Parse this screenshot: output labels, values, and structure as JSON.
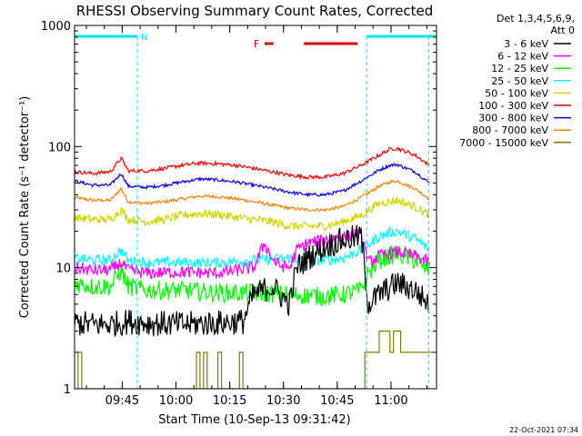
{
  "chart_data": {
    "type": "line",
    "title": "RHESSI Observing Summary Count Rates, Corrected",
    "xlabel": "Start Time (10-Sep-13 09:31:42)",
    "ylabel": "Corrected Count Rate (s⁻¹ detector⁻¹)",
    "yscale": "log",
    "ylim": [
      1,
      1000
    ],
    "xlim_minutes": [
      0,
      101
    ],
    "grid": false,
    "legend_position": "right",
    "x_tick_labels": [
      {
        "label": "09:45",
        "minute": 13.3
      },
      {
        "label": "10:00",
        "minute": 28.3
      },
      {
        "label": "10:15",
        "minute": 43.3
      },
      {
        "label": "10:30",
        "minute": 58.3
      },
      {
        "label": "10:45",
        "minute": 73.3
      },
      {
        "label": "11:00",
        "minute": 88.3
      }
    ],
    "y_tick_labels": [
      {
        "label": "1",
        "value": 1
      },
      {
        "label": "10",
        "value": 10
      },
      {
        "label": "100",
        "value": 100
      },
      {
        "label": "1000",
        "value": 1000
      }
    ],
    "legend_header": [
      "Det 1,3,4,5,6,9,",
      "Att 0"
    ],
    "night_marker_label": "N",
    "flare_marker_label": "F",
    "timestamp": "22-Oct-2021 07:34",
    "colors": {
      "night": "#00e5ee",
      "flare": "#e00000"
    },
    "night_bars": [
      {
        "start": 0,
        "end": 17.5
      },
      {
        "start": 81.5,
        "end": 101
      }
    ],
    "flare_bars": [
      {
        "start": 53,
        "end": 55.5
      },
      {
        "start": 64,
        "end": 79
      }
    ],
    "dashed_lines": [
      17.5,
      81.5,
      98.8
    ],
    "series": [
      {
        "name": "3 - 6 keV",
        "color": "#000000",
        "noise": 0.25,
        "x": [
          0,
          5,
          10,
          15,
          20,
          30,
          40,
          47,
          50,
          55,
          60,
          62,
          65,
          70,
          75,
          80,
          82,
          85,
          90,
          95,
          99
        ],
        "y": [
          3.5,
          3.4,
          3.4,
          3.6,
          3.5,
          3.4,
          3.5,
          3.6,
          6.0,
          7.0,
          5.0,
          10.0,
          12.0,
          15.0,
          17.0,
          18.0,
          5.0,
          6.0,
          7.5,
          6.5,
          5.0
        ]
      },
      {
        "name": "6 - 12 keV",
        "color": "#ff00ff",
        "noise": 0.12,
        "x": [
          0,
          5,
          10,
          13,
          15,
          20,
          30,
          40,
          50,
          53,
          55,
          57,
          60,
          62,
          65,
          70,
          75,
          80,
          82,
          85,
          90,
          95,
          99
        ],
        "y": [
          10.0,
          9.5,
          9.5,
          11.0,
          9.5,
          9.0,
          9.2,
          9.0,
          10.0,
          16.0,
          12.0,
          10.5,
          10.0,
          14.0,
          16.0,
          17.0,
          18.0,
          19.0,
          11.0,
          12.5,
          13.5,
          12.5,
          11.0
        ]
      },
      {
        "name": "12 - 25 keV",
        "color": "#00ff00",
        "noise": 0.18,
        "x": [
          0,
          5,
          10,
          13,
          15,
          20,
          30,
          40,
          50,
          60,
          70,
          75,
          80,
          82,
          85,
          88,
          90,
          95,
          99
        ],
        "y": [
          7.5,
          7.0,
          7.0,
          9.5,
          7.0,
          6.5,
          6.5,
          6.2,
          6.2,
          6.0,
          5.8,
          6.0,
          6.5,
          9.0,
          11.5,
          12.5,
          13.0,
          11.5,
          9.5
        ]
      },
      {
        "name": "25 - 50 keV",
        "color": "#00ffff",
        "noise": 0.1,
        "x": [
          0,
          5,
          10,
          13,
          15,
          20,
          30,
          40,
          50,
          60,
          65,
          70,
          75,
          80,
          82,
          85,
          88,
          90,
          95,
          99
        ],
        "y": [
          12.0,
          11.5,
          11.5,
          14.0,
          11.5,
          11.0,
          11.0,
          11.0,
          11.5,
          12.0,
          11.5,
          11.5,
          12.0,
          14.0,
          15.5,
          18.0,
          19.5,
          20.0,
          17.5,
          14.0
        ]
      },
      {
        "name": "50 - 100 keV",
        "color": "#d4d400",
        "noise": 0.08,
        "x": [
          0,
          5,
          10,
          13,
          15,
          20,
          25,
          30,
          35,
          40,
          45,
          50,
          55,
          60,
          65,
          70,
          75,
          80,
          85,
          90,
          95,
          99
        ],
        "y": [
          26.0,
          25.0,
          25.0,
          30.0,
          25.0,
          24.0,
          25.0,
          27.0,
          28.0,
          27.5,
          26.0,
          25.0,
          24.0,
          22.0,
          22.0,
          22.0,
          24.0,
          27.0,
          34.0,
          36.0,
          32.0,
          27.0
        ]
      },
      {
        "name": "100 - 300 keV",
        "color": "#ff0000",
        "noise": 0.035,
        "x": [
          0,
          5,
          10,
          13,
          15,
          20,
          25,
          30,
          35,
          40,
          45,
          50,
          55,
          60,
          65,
          70,
          75,
          80,
          85,
          88,
          90,
          95,
          99
        ],
        "y": [
          62.0,
          60.0,
          62.0,
          80.0,
          63.0,
          63.0,
          66.0,
          70.0,
          73.0,
          72.0,
          70.0,
          66.0,
          62.0,
          58.0,
          56.0,
          56.0,
          60.0,
          70.0,
          85.0,
          95.0,
          97.0,
          85.0,
          70.0
        ]
      },
      {
        "name": "300 - 800 keV",
        "color": "#0000ff",
        "noise": 0.03,
        "x": [
          0,
          5,
          10,
          13,
          15,
          20,
          25,
          30,
          35,
          40,
          45,
          50,
          55,
          60,
          65,
          70,
          75,
          80,
          85,
          88,
          90,
          95,
          99
        ],
        "y": [
          52.0,
          48.0,
          48.0,
          60.0,
          47.0,
          46.0,
          48.0,
          51.0,
          54.0,
          53.0,
          51.0,
          48.0,
          45.0,
          42.0,
          40.0,
          40.0,
          43.0,
          52.0,
          64.0,
          70.0,
          71.0,
          62.0,
          50.0
        ]
      },
      {
        "name": "800 - 7000 keV",
        "color": "#ff8000",
        "noise": 0.03,
        "x": [
          0,
          5,
          10,
          13,
          15,
          20,
          25,
          30,
          35,
          40,
          45,
          50,
          55,
          60,
          65,
          70,
          75,
          80,
          85,
          88,
          90,
          95,
          99
        ],
        "y": [
          38.0,
          36.0,
          36.0,
          45.0,
          35.0,
          34.0,
          35.0,
          37.0,
          39.0,
          38.5,
          37.0,
          35.0,
          33.0,
          31.0,
          30.0,
          30.0,
          32.0,
          38.0,
          47.0,
          51.0,
          52.0,
          45.0,
          37.0
        ]
      },
      {
        "name": "7000 - 15000 keV",
        "color": "#808000",
        "noise": 0,
        "x": [
          0,
          1,
          2,
          3,
          4,
          5,
          6,
          7,
          8,
          9,
          10,
          11,
          12,
          13,
          14,
          15,
          16,
          17,
          18,
          19,
          20,
          21,
          22,
          23,
          24,
          25,
          26,
          27,
          28,
          29,
          30,
          31,
          32,
          33,
          34,
          35,
          36,
          37,
          38,
          39,
          40,
          41,
          42,
          43,
          44,
          45,
          46,
          47,
          48,
          49,
          50,
          51,
          52,
          53,
          54,
          55,
          56,
          57,
          58,
          59,
          60,
          61,
          62,
          63,
          64,
          65,
          66,
          67,
          68,
          69,
          70,
          71,
          72,
          73,
          74,
          75,
          76,
          77,
          78,
          79,
          80,
          81,
          82,
          83,
          84,
          85,
          86,
          87,
          88,
          89,
          90,
          91,
          92,
          93,
          94,
          95,
          96,
          97,
          98,
          99
        ],
        "y": [
          1.0,
          2.0,
          1.0,
          1.0,
          1.0,
          1.0,
          1.0,
          1.0,
          1.0,
          1.0,
          1.0,
          1.0,
          1.0,
          1.0,
          1.0,
          1.0,
          1.0,
          1.0,
          1.0,
          1.0,
          1.0,
          1.0,
          1.0,
          1.0,
          1.0,
          1.0,
          1.0,
          1.0,
          1.0,
          1.0,
          1.0,
          1.0,
          1.0,
          1.0,
          2.0,
          1.0,
          2.0,
          1.0,
          1.0,
          1.0,
          2.0,
          1.0,
          1.0,
          1.0,
          1.0,
          1.0,
          2.0,
          1.0,
          1.0,
          1.0,
          1.0,
          1.0,
          1.0,
          1.0,
          1.0,
          1.0,
          1.0,
          1.0,
          1.0,
          1.0,
          1.0,
          1.0,
          1.0,
          1.0,
          1.0,
          1.0,
          1.0,
          1.0,
          1.0,
          1.0,
          1.0,
          1.0,
          1.0,
          1.0,
          1.0,
          1.0,
          1.0,
          1.0,
          1.0,
          1.0,
          1.0,
          2.0,
          2.0,
          2.0,
          2.0,
          3.0,
          3.0,
          3.0,
          2.0,
          3.0,
          3.0,
          2.0,
          2.0,
          2.0,
          2.0,
          2.0,
          2.0,
          2.0,
          2.0,
          2.0
        ]
      }
    ]
  }
}
